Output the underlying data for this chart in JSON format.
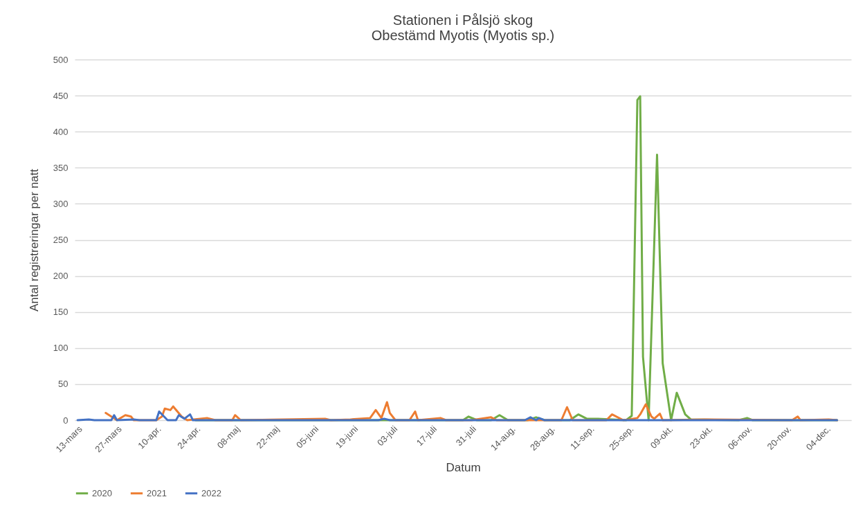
{
  "chart_data": {
    "type": "line",
    "title": "Stationen i Pålsjö skog\nObestämd Myotis (Myotis sp.)",
    "xlabel": "Datum",
    "ylabel": "Antal registreringar per natt",
    "xlim": [
      "--03-12",
      "--12-13"
    ],
    "xticks": [
      {
        "value": "--03-13",
        "label": "13-mars"
      },
      {
        "value": "--03-27",
        "label": "27-mars"
      },
      {
        "value": "--04-10",
        "label": "10-apr."
      },
      {
        "value": "--04-24",
        "label": "24-apr."
      },
      {
        "value": "--05-08",
        "label": "08-maj"
      },
      {
        "value": "--05-22",
        "label": "22-maj"
      },
      {
        "value": "--06-05",
        "label": "05-juni"
      },
      {
        "value": "--06-19",
        "label": "19-juni"
      },
      {
        "value": "--07-03",
        "label": "03-juli"
      },
      {
        "value": "--07-17",
        "label": "17-juli"
      },
      {
        "value": "--07-31",
        "label": "31-juli"
      },
      {
        "value": "--08-14",
        "label": "14-aug."
      },
      {
        "value": "--08-28",
        "label": "28-aug."
      },
      {
        "value": "--09-11",
        "label": "11-sep."
      },
      {
        "value": "--09-25",
        "label": "25-sep."
      },
      {
        "value": "--10-09",
        "label": "09-okt."
      },
      {
        "value": "--10-23",
        "label": "23-okt."
      },
      {
        "value": "--11-06",
        "label": "06-nov."
      },
      {
        "value": "--11-20",
        "label": "20-nov."
      },
      {
        "value": "--12-04",
        "label": "04-dec."
      }
    ],
    "ylim": [
      0,
      500
    ],
    "yticks": [
      0,
      50,
      100,
      150,
      200,
      250,
      300,
      350,
      400,
      450,
      500
    ],
    "grid": "y",
    "legend": "bottom",
    "series": [
      {
        "name": "2020",
        "color": "#70ad47",
        "x": [
          "--04-24",
          "--07-28",
          "--07-30",
          "--08-02",
          "--08-07",
          "--08-10",
          "--08-13",
          "--08-20",
          "--08-23",
          "--08-26",
          "--09-04",
          "--09-07",
          "--09-10",
          "--09-14",
          "--09-24",
          "--09-26",
          "--09-28",
          "--09-29",
          "--09-30",
          "--10-02",
          "--10-05",
          "--10-07",
          "--10-10",
          "--10-12",
          "--10-15",
          "--10-17",
          "--11-03",
          "--11-06",
          "--11-08",
          "--12-08"
        ],
        "values": [
          0,
          0,
          5,
          0,
          0,
          7,
          0,
          0,
          4,
          0,
          0,
          8,
          2,
          2,
          0,
          6,
          444,
          449,
          88,
          0,
          368,
          79,
          0,
          38,
          8,
          1,
          0,
          3,
          0,
          0
        ]
      },
      {
        "name": "2021",
        "color": "#ed7d31",
        "x": [
          "--03-23",
          "--03-25",
          "--03-27",
          "--03-30",
          "--04-01",
          "--04-02",
          "--04-10",
          "--04-12",
          "--04-13",
          "--04-15",
          "--04-16",
          "--04-19",
          "--04-21",
          "--04-28",
          "--05-01",
          "--05-07",
          "--05-08",
          "--05-10",
          "--06-09",
          "--06-11",
          "--06-18",
          "--06-25",
          "--06-27",
          "--06-29",
          "--07-01",
          "--07-02",
          "--07-04",
          "--07-09",
          "--07-11",
          "--07-12",
          "--07-20",
          "--07-22",
          "--07-31",
          "--08-07",
          "--08-09",
          "--09-01",
          "--09-03",
          "--09-05",
          "--09-17",
          "--09-19",
          "--09-23",
          "--09-25",
          "--09-28",
          "--09-29",
          "--10-01",
          "--10-03",
          "--10-04",
          "--10-06",
          "--10-07",
          "--10-23",
          "--11-22",
          "--11-24",
          "--11-25",
          "--12-05",
          "--12-08"
        ],
        "values": [
          10,
          5,
          0,
          7,
          5,
          0,
          0,
          5,
          16,
          14,
          19,
          5,
          0,
          3,
          0,
          0,
          7,
          0,
          2,
          0,
          1,
          3,
          14,
          3,
          25,
          10,
          0,
          0,
          12,
          0,
          3,
          0,
          0,
          4,
          0,
          0,
          18,
          0,
          0,
          8,
          0,
          1,
          3,
          8,
          22,
          5,
          2,
          9,
          0,
          1,
          0,
          5,
          0,
          1,
          0
        ]
      },
      {
        "name": "2022",
        "color": "#4472c4",
        "x": [
          "--03-13",
          "--03-17",
          "--03-19",
          "--03-25",
          "--03-26",
          "--03-27",
          "--04-02",
          "--04-04",
          "--04-10",
          "--04-11",
          "--04-14",
          "--04-17",
          "--04-18",
          "--04-20",
          "--04-22",
          "--04-23",
          "--06-28",
          "--06-30",
          "--07-02",
          "--08-19",
          "--08-21",
          "--08-23",
          "--08-24",
          "--08-26",
          "--12-08"
        ],
        "values": [
          0,
          1,
          0,
          0,
          7,
          0,
          1,
          0,
          0,
          12,
          0,
          0,
          7,
          2,
          8,
          0,
          0,
          2,
          0,
          0,
          4,
          0,
          3,
          0,
          0
        ]
      }
    ]
  }
}
